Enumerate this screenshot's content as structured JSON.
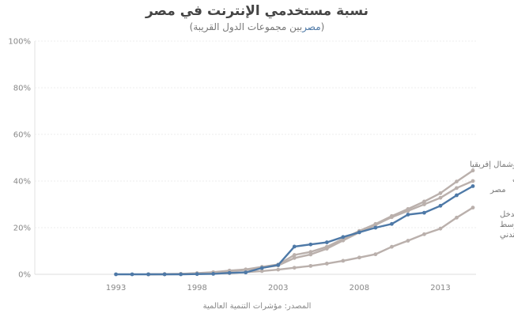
{
  "title": "نسبة مستخدمي الإنترنت في مصر",
  "subtitle_open": "(",
  "subtitle_highlight": "مصر",
  "subtitle_rest": "بين مجموعات الدول القريبة)",
  "source": "المصدر: مؤشرات التنمية العالمية",
  "colors": {
    "highlight": "#4e79a7",
    "other": "#bab0ac"
  },
  "chart_data": {
    "type": "line",
    "xlim": [
      1988,
      2015
    ],
    "ylim": [
      0,
      100
    ],
    "xticks": [
      1993,
      1998,
      2003,
      2008,
      2013
    ],
    "yticks": [
      0,
      20,
      40,
      60,
      80,
      100
    ],
    "ytick_labels": [
      "0%",
      "20%",
      "40%",
      "60%",
      "80%",
      "100%"
    ],
    "grid": true,
    "series": [
      {
        "name": "الشرق الأوسط وشمال إفريقيا",
        "label_lines": [
          "الشرق الأوسط وشمال إفريقيا"
        ],
        "role": "other",
        "x": [
          1995,
          1996,
          1997,
          1998,
          1999,
          2000,
          2001,
          2002,
          2003,
          2004,
          2005,
          2006,
          2007,
          2008,
          2009,
          2010,
          2011,
          2012,
          2013,
          2014,
          2015
        ],
        "y": [
          0.0,
          0.1,
          0.2,
          0.5,
          0.9,
          1.6,
          2.1,
          3.2,
          4.2,
          8.3,
          9.6,
          11.8,
          15.2,
          18.6,
          21.6,
          25.0,
          28.0,
          31.2,
          34.8,
          39.8,
          44.5
        ]
      },
      {
        "name": "العالم العربي",
        "label_lines": [
          "العالم العربي"
        ],
        "role": "other",
        "x": [
          1995,
          1996,
          1997,
          1998,
          1999,
          2000,
          2001,
          2002,
          2003,
          2004,
          2005,
          2006,
          2007,
          2008,
          2009,
          2010,
          2011,
          2012,
          2013,
          2014,
          2015
        ],
        "y": [
          0.0,
          0.1,
          0.2,
          0.4,
          0.8,
          1.4,
          1.9,
          2.8,
          3.8,
          7.0,
          8.5,
          11.0,
          14.5,
          18.0,
          21.2,
          24.5,
          27.2,
          30.0,
          32.8,
          37.0,
          40.0
        ]
      },
      {
        "name": "مصر",
        "label_lines": [
          "مصر"
        ],
        "role": "highlight",
        "x": [
          1993,
          1994,
          1995,
          1996,
          1997,
          1998,
          1999,
          2000,
          2001,
          2002,
          2003,
          2004,
          2005,
          2006,
          2007,
          2008,
          2009,
          2010,
          2011,
          2012,
          2013,
          2014,
          2015
        ],
        "y": [
          0.0,
          0.0,
          0.0,
          0.0,
          0.0,
          0.1,
          0.2,
          0.6,
          0.8,
          2.7,
          4.0,
          11.9,
          12.8,
          13.7,
          16.0,
          18.0,
          20.0,
          21.6,
          25.6,
          26.4,
          29.4,
          33.9,
          37.8
        ]
      },
      {
        "name": "عالم الدخل الأوسط المتدني",
        "label_lines": [
          "عالم الدخل",
          "الأوسط",
          "المتدني"
        ],
        "role": "other",
        "x": [
          1995,
          1996,
          1997,
          1998,
          1999,
          2000,
          2001,
          2002,
          2003,
          2004,
          2005,
          2006,
          2007,
          2008,
          2009,
          2010,
          2011,
          2012,
          2013,
          2014,
          2015
        ],
        "y": [
          0.0,
          0.0,
          0.1,
          0.2,
          0.3,
          0.5,
          0.9,
          1.4,
          2.0,
          2.8,
          3.6,
          4.6,
          5.8,
          7.2,
          8.6,
          11.8,
          14.4,
          17.2,
          19.6,
          24.3,
          28.6
        ]
      }
    ]
  }
}
